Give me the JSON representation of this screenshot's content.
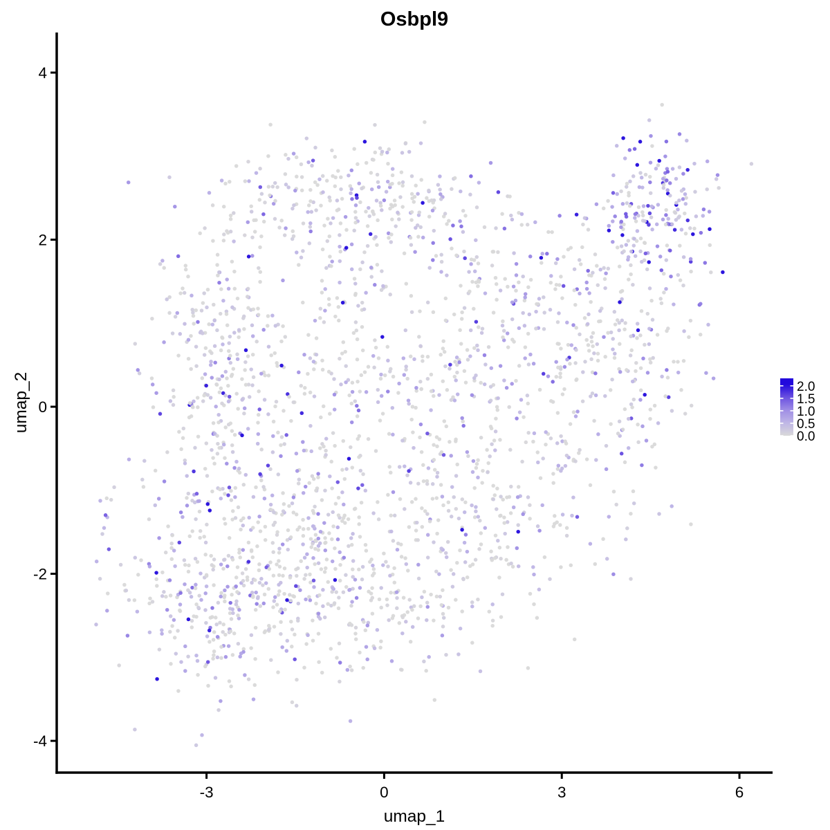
{
  "page": {
    "background": "#ffffff"
  },
  "chart_data": {
    "type": "scatter",
    "title": "Osbpl9",
    "xlabel": "umap_1",
    "ylabel": "umap_2",
    "x_ticks": [
      -3,
      0,
      3,
      6
    ],
    "y_ticks": [
      -4,
      -2,
      0,
      2,
      4
    ],
    "xlim": [
      -5.53,
      6.56
    ],
    "ylim": [
      -4.38,
      4.48
    ],
    "grid": false,
    "point_radius": 2.75,
    "point_opacity": 0.95,
    "value_max": 2.05,
    "seed": 1337,
    "color_ramp": [
      {
        "f": 0.0,
        "color": "#D9D9D9"
      },
      {
        "f": 0.25,
        "color": "#BFB6E6"
      },
      {
        "f": 0.5,
        "color": "#9F8EE5"
      },
      {
        "f": 0.75,
        "color": "#6C52E0"
      },
      {
        "f": 1.0,
        "color": "#2209DC"
      }
    ],
    "legend": {
      "position": "right",
      "breaks": [
        "2.0",
        "1.5",
        "1.0",
        "0.5",
        "0.0"
      ],
      "break_values": [
        2.0,
        1.5,
        1.0,
        0.5,
        0.0
      ],
      "bar_range": [
        0,
        2.3
      ],
      "color_low": "#D9D9D9",
      "color_high": "#2209DC",
      "tick_color": "#FFFFFF"
    },
    "clusters": [
      {
        "n": 170,
        "cx": -1.0,
        "cy": 2.45,
        "sx": 1.05,
        "sy": 0.35,
        "p0": 0.34,
        "m": 0.5
      },
      {
        "n": 80,
        "cx": 0.35,
        "cy": 2.55,
        "sx": 0.7,
        "sy": 0.3,
        "p0": 0.34,
        "m": 0.5
      },
      {
        "n": 160,
        "cx": -2.8,
        "cy": 0.9,
        "sx": 0.55,
        "sy": 0.75,
        "p0": 0.36,
        "m": 0.5
      },
      {
        "n": 150,
        "cx": -2.7,
        "cy": -0.35,
        "sx": 0.6,
        "sy": 0.7,
        "p0": 0.36,
        "m": 0.5
      },
      {
        "n": 200,
        "cx": -0.9,
        "cy": 0.7,
        "sx": 0.75,
        "sy": 0.95,
        "p0": 0.38,
        "m": 0.48
      },
      {
        "n": 330,
        "cx": -2.7,
        "cy": -2.3,
        "sx": 0.85,
        "sy": 0.6,
        "p0": 0.4,
        "m": 0.5
      },
      {
        "n": 150,
        "cx": -1.3,
        "cy": -1.5,
        "sx": 0.6,
        "sy": 0.55,
        "p0": 0.4,
        "m": 0.48
      },
      {
        "n": 170,
        "cx": -0.1,
        "cy": -2.3,
        "sx": 0.75,
        "sy": 0.55,
        "p0": 0.42,
        "m": 0.45
      },
      {
        "n": 120,
        "cx": 0.7,
        "cy": -0.9,
        "sx": 0.75,
        "sy": 0.75,
        "p0": 0.42,
        "m": 0.45
      },
      {
        "n": 140,
        "cx": 1.2,
        "cy": 0.6,
        "sx": 0.8,
        "sy": 0.8,
        "p0": 0.4,
        "m": 0.48
      },
      {
        "n": 70,
        "cx": 1.6,
        "cy": -1.9,
        "sx": 0.55,
        "sy": 0.5,
        "p0": 0.45,
        "m": 0.42
      },
      {
        "n": 120,
        "cx": 2.6,
        "cy": -0.7,
        "sx": 0.75,
        "sy": 0.75,
        "p0": 0.42,
        "m": 0.5
      },
      {
        "n": 60,
        "cx": 2.0,
        "cy": 1.6,
        "sx": 0.6,
        "sy": 0.5,
        "p0": 0.4,
        "m": 0.5
      },
      {
        "n": 150,
        "cx": 3.1,
        "cy": 1.0,
        "sx": 0.8,
        "sy": 0.6,
        "p0": 0.34,
        "m": 0.55
      },
      {
        "n": 110,
        "cx": 4.2,
        "cy": 0.4,
        "sx": 0.5,
        "sy": 0.9,
        "p0": 0.34,
        "m": 0.55
      },
      {
        "n": 190,
        "cx": 4.6,
        "cy": 2.3,
        "sx": 0.5,
        "sy": 0.45,
        "p0": 0.14,
        "m": 0.85
      },
      {
        "n": 8,
        "cx": -4.68,
        "cy": -1.3,
        "sx": 0.07,
        "sy": 0.18,
        "p0": 0.3,
        "m": 0.5
      }
    ]
  }
}
